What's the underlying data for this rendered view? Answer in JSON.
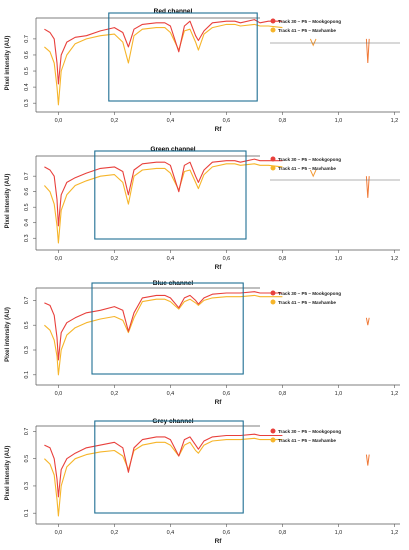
{
  "chart_data": [
    {
      "type": "line",
      "title": "Red channel",
      "xlabel": "Rf",
      "ylabel": "Pixel intensity (AU)",
      "xticks": [
        "0,0",
        "0,2",
        "0,4",
        "0,6",
        "0,8",
        "1,0",
        "1,2"
      ],
      "yticks": [
        "0.3",
        "0.4",
        "0.5",
        "0.6",
        "0.7"
      ],
      "xlim": [
        -0.08,
        1.22
      ],
      "ylim": [
        0.27,
        0.83
      ],
      "highlight_box": [
        0.18,
        0.71
      ],
      "series": [
        {
          "name": "Track 30 – P5 – Mookgopong",
          "color": "#e8403c",
          "x": [
            -0.05,
            -0.03,
            -0.015,
            -0.005,
            0.0,
            0.01,
            0.03,
            0.06,
            0.1,
            0.15,
            0.2,
            0.23,
            0.25,
            0.27,
            0.3,
            0.35,
            0.38,
            0.4,
            0.43,
            0.45,
            0.47,
            0.49,
            0.5,
            0.52,
            0.55,
            0.6,
            0.63,
            0.65,
            0.7,
            0.72,
            0.75,
            0.8
          ],
          "y": [
            0.76,
            0.74,
            0.7,
            0.55,
            0.42,
            0.6,
            0.68,
            0.71,
            0.72,
            0.75,
            0.77,
            0.74,
            0.65,
            0.76,
            0.79,
            0.8,
            0.8,
            0.78,
            0.62,
            0.78,
            0.81,
            0.72,
            0.69,
            0.75,
            0.8,
            0.81,
            0.81,
            0.8,
            0.82,
            0.8,
            0.81,
            0.81
          ]
        },
        {
          "name": "Track 41 – P5 – Mavhambe",
          "color": "#f6b52a",
          "x": [
            -0.05,
            -0.03,
            -0.015,
            -0.005,
            0.0,
            0.01,
            0.03,
            0.06,
            0.1,
            0.15,
            0.2,
            0.23,
            0.25,
            0.27,
            0.3,
            0.35,
            0.38,
            0.4,
            0.43,
            0.45,
            0.47,
            0.49,
            0.5,
            0.52,
            0.55,
            0.6,
            0.63,
            0.65,
            0.7,
            0.72,
            0.75,
            0.8
          ],
          "y": [
            0.65,
            0.62,
            0.55,
            0.4,
            0.29,
            0.5,
            0.6,
            0.67,
            0.7,
            0.72,
            0.73,
            0.68,
            0.55,
            0.72,
            0.76,
            0.77,
            0.77,
            0.74,
            0.63,
            0.75,
            0.76,
            0.68,
            0.63,
            0.73,
            0.77,
            0.79,
            0.79,
            0.78,
            0.79,
            0.78,
            0.78,
            0.77
          ]
        }
      ],
      "fragments": [
        {
          "x": [
            0.9,
            0.91,
            0.92
          ],
          "y": [
            0.7,
            0.66,
            0.7
          ],
          "color": "#f29a36"
        },
        {
          "x": [
            1.1,
            1.105,
            1.11
          ],
          "y": [
            0.7,
            0.55,
            0.7
          ],
          "color": "#f07a38"
        }
      ],
      "grid": false,
      "legend_position": "top-right"
    },
    {
      "type": "line",
      "title": "Green channel",
      "xlabel": "Rf",
      "ylabel": "Pixel intensity (AU)",
      "xticks": [
        "0,0",
        "0,2",
        "0,4",
        "0,6",
        "0,8",
        "1,0",
        "1,2"
      ],
      "yticks": [
        "0.3",
        "0.4",
        "0.5",
        "0.6",
        "0.7"
      ],
      "xlim": [
        -0.08,
        1.22
      ],
      "ylim": [
        0.25,
        0.83
      ],
      "highlight_box": [
        0.13,
        0.67
      ],
      "series": [
        {
          "name": "Track 30 – P5 – Mookgopong",
          "color": "#e8403c",
          "x": [
            -0.05,
            -0.03,
            -0.015,
            -0.005,
            0.0,
            0.01,
            0.03,
            0.06,
            0.1,
            0.15,
            0.2,
            0.23,
            0.25,
            0.27,
            0.3,
            0.35,
            0.38,
            0.4,
            0.43,
            0.45,
            0.47,
            0.49,
            0.5,
            0.52,
            0.55,
            0.6,
            0.63,
            0.65,
            0.7,
            0.72,
            0.75,
            0.8
          ],
          "y": [
            0.76,
            0.74,
            0.7,
            0.55,
            0.38,
            0.58,
            0.66,
            0.69,
            0.72,
            0.75,
            0.76,
            0.73,
            0.58,
            0.74,
            0.78,
            0.79,
            0.79,
            0.77,
            0.6,
            0.77,
            0.79,
            0.7,
            0.66,
            0.74,
            0.79,
            0.8,
            0.8,
            0.79,
            0.81,
            0.8,
            0.8,
            0.8
          ]
        },
        {
          "name": "Track 41 – P5 – Mavhambe",
          "color": "#f6b52a",
          "x": [
            -0.05,
            -0.03,
            -0.015,
            -0.005,
            0.0,
            0.01,
            0.03,
            0.06,
            0.1,
            0.15,
            0.2,
            0.23,
            0.25,
            0.27,
            0.3,
            0.35,
            0.38,
            0.4,
            0.43,
            0.45,
            0.47,
            0.49,
            0.5,
            0.52,
            0.55,
            0.6,
            0.63,
            0.65,
            0.7,
            0.72,
            0.75,
            0.8
          ],
          "y": [
            0.64,
            0.6,
            0.52,
            0.38,
            0.27,
            0.48,
            0.58,
            0.64,
            0.67,
            0.7,
            0.71,
            0.66,
            0.52,
            0.7,
            0.74,
            0.75,
            0.75,
            0.72,
            0.61,
            0.73,
            0.74,
            0.66,
            0.62,
            0.71,
            0.76,
            0.78,
            0.78,
            0.77,
            0.78,
            0.77,
            0.77,
            0.76
          ]
        }
      ],
      "fragments": [
        {
          "x": [
            0.9,
            0.91,
            0.92
          ],
          "y": [
            0.74,
            0.7,
            0.74
          ],
          "color": "#f29a36"
        },
        {
          "x": [
            1.1,
            1.105,
            1.11
          ],
          "y": [
            0.7,
            0.56,
            0.7
          ],
          "color": "#f07a38"
        }
      ],
      "grid": false,
      "legend_position": "top-right"
    },
    {
      "type": "line",
      "title": "Blue channel",
      "xlabel": "Rf",
      "ylabel": "Pixel intensity (AU)",
      "xticks": [
        "0,0",
        "0,2",
        "0,4",
        "0,6",
        "0,8",
        "1,0",
        "1,2"
      ],
      "yticks": [
        "0.1",
        "0.3",
        "0.5",
        "0.7"
      ],
      "xlim": [
        -0.08,
        1.22
      ],
      "ylim": [
        0.05,
        0.8
      ],
      "highlight_box": [
        0.12,
        0.66
      ],
      "series": [
        {
          "name": "Track 30 – P5 – Mookgopong",
          "color": "#e8403c",
          "x": [
            -0.05,
            -0.03,
            -0.015,
            -0.005,
            0.0,
            0.01,
            0.03,
            0.06,
            0.1,
            0.15,
            0.2,
            0.23,
            0.25,
            0.27,
            0.3,
            0.35,
            0.38,
            0.4,
            0.43,
            0.45,
            0.47,
            0.49,
            0.5,
            0.52,
            0.55,
            0.6,
            0.63,
            0.65,
            0.7,
            0.72,
            0.75,
            0.8
          ],
          "y": [
            0.68,
            0.66,
            0.58,
            0.4,
            0.22,
            0.44,
            0.52,
            0.56,
            0.6,
            0.62,
            0.65,
            0.62,
            0.45,
            0.6,
            0.72,
            0.74,
            0.74,
            0.72,
            0.64,
            0.72,
            0.74,
            0.7,
            0.67,
            0.72,
            0.75,
            0.76,
            0.76,
            0.76,
            0.77,
            0.76,
            0.76,
            0.76
          ]
        },
        {
          "name": "Track 41 – P5 – Mavhambe",
          "color": "#f6b52a",
          "x": [
            -0.05,
            -0.03,
            -0.015,
            -0.005,
            0.0,
            0.01,
            0.03,
            0.06,
            0.1,
            0.15,
            0.2,
            0.23,
            0.25,
            0.27,
            0.3,
            0.35,
            0.38,
            0.4,
            0.43,
            0.45,
            0.47,
            0.49,
            0.5,
            0.52,
            0.55,
            0.6,
            0.63,
            0.65,
            0.7,
            0.72,
            0.75,
            0.8
          ],
          "y": [
            0.5,
            0.46,
            0.38,
            0.25,
            0.1,
            0.3,
            0.42,
            0.48,
            0.52,
            0.55,
            0.57,
            0.54,
            0.44,
            0.56,
            0.69,
            0.71,
            0.71,
            0.69,
            0.63,
            0.69,
            0.71,
            0.68,
            0.66,
            0.7,
            0.72,
            0.73,
            0.73,
            0.73,
            0.74,
            0.73,
            0.73,
            0.73
          ]
        }
      ],
      "fragments": [
        {
          "x": [
            1.1,
            1.105,
            1.11
          ],
          "y": [
            0.56,
            0.5,
            0.56
          ],
          "color": "#f07a38"
        }
      ],
      "grid": false,
      "legend_position": "top-right"
    },
    {
      "type": "line",
      "title": "Grey channel",
      "xlabel": "Rf",
      "ylabel": "Pixel intensity (AU)",
      "xticks": [
        "0,0",
        "0,2",
        "0,4",
        "0,6",
        "0,8",
        "1,0",
        "1,2"
      ],
      "yticks": [
        "0.1",
        "0.3",
        "0.5",
        "0.7"
      ],
      "xlim": [
        -0.08,
        1.22
      ],
      "ylim": [
        0.05,
        0.74
      ],
      "highlight_box": [
        0.13,
        0.66
      ],
      "series": [
        {
          "name": "Track 30 – P5 – Mookgopong",
          "color": "#e8403c",
          "x": [
            -0.05,
            -0.03,
            -0.015,
            -0.005,
            0.0,
            0.01,
            0.03,
            0.06,
            0.1,
            0.15,
            0.2,
            0.23,
            0.25,
            0.27,
            0.3,
            0.35,
            0.38,
            0.4,
            0.43,
            0.45,
            0.47,
            0.49,
            0.5,
            0.52,
            0.55,
            0.6,
            0.63,
            0.65,
            0.7,
            0.72,
            0.75,
            0.8
          ],
          "y": [
            0.6,
            0.58,
            0.5,
            0.35,
            0.22,
            0.42,
            0.5,
            0.54,
            0.58,
            0.6,
            0.62,
            0.58,
            0.4,
            0.58,
            0.64,
            0.66,
            0.66,
            0.64,
            0.52,
            0.64,
            0.66,
            0.6,
            0.57,
            0.63,
            0.66,
            0.67,
            0.67,
            0.67,
            0.68,
            0.67,
            0.67,
            0.67
          ]
        },
        {
          "name": "Track 41 – P5 – Mavhambe",
          "color": "#f6b52a",
          "x": [
            -0.05,
            -0.03,
            -0.015,
            -0.005,
            0.0,
            0.01,
            0.03,
            0.06,
            0.1,
            0.15,
            0.2,
            0.23,
            0.25,
            0.27,
            0.3,
            0.35,
            0.38,
            0.4,
            0.43,
            0.45,
            0.47,
            0.49,
            0.5,
            0.52,
            0.55,
            0.6,
            0.63,
            0.65,
            0.7,
            0.72,
            0.75,
            0.8
          ],
          "y": [
            0.5,
            0.46,
            0.38,
            0.2,
            0.08,
            0.3,
            0.44,
            0.5,
            0.53,
            0.55,
            0.56,
            0.52,
            0.42,
            0.56,
            0.6,
            0.62,
            0.62,
            0.6,
            0.52,
            0.6,
            0.62,
            0.56,
            0.54,
            0.6,
            0.63,
            0.64,
            0.64,
            0.64,
            0.65,
            0.64,
            0.64,
            0.64
          ]
        }
      ],
      "fragments": [
        {
          "x": [
            1.1,
            1.105,
            1.11
          ],
          "y": [
            0.53,
            0.45,
            0.53
          ],
          "color": "#f07a38"
        }
      ],
      "grid": false,
      "legend_position": "top-right"
    }
  ]
}
